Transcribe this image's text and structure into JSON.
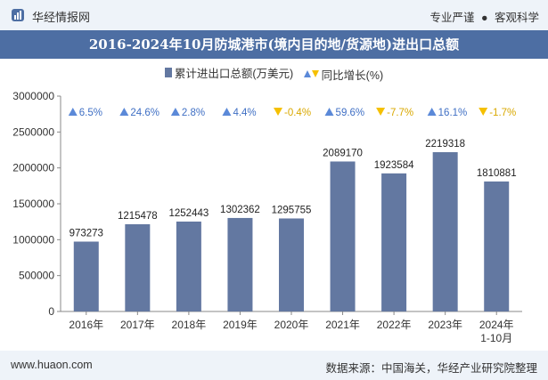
{
  "header": {
    "brand": "华经情报网",
    "slogan_left": "专业严谨",
    "separator": "●",
    "slogan_right": "客观科学"
  },
  "footer": {
    "website": "www.huaon.com",
    "source": "数据来源：中国海关，华经产业研究院整理"
  },
  "colors": {
    "bar": "#6378a1",
    "up": "#5b89d8",
    "down": "#f5c000",
    "title_band": "#4d6ea3",
    "band": "#eef3f9"
  },
  "chart_data": {
    "type": "bar",
    "title": "2016-2024年10月防城港市(境内目的地/货源地)进出口总额",
    "legend": {
      "bar_label": "累计进出口总额(万美元)",
      "growth_label": "同比增长(%)"
    },
    "categories": [
      [
        "2016年"
      ],
      [
        "2017年"
      ],
      [
        "2018年"
      ],
      [
        "2019年"
      ],
      [
        "2020年"
      ],
      [
        "2021年"
      ],
      [
        "2022年"
      ],
      [
        "2023年"
      ],
      [
        "2024年",
        "1-10月"
      ]
    ],
    "series": [
      {
        "name": "累计进出口总额(万美元)",
        "values": [
          973273,
          1215478,
          1252443,
          1302362,
          1295755,
          2089170,
          1923584,
          2219318,
          1810881
        ],
        "labels": [
          "973273",
          "1215478",
          "1252443",
          "1302362",
          "1295755",
          "2089170",
          "1923584",
          "2219318",
          "1810881"
        ]
      },
      {
        "name": "同比增长(%)",
        "values": [
          6.5,
          24.6,
          2.8,
          4.4,
          -0.4,
          59.6,
          -7.7,
          16.1,
          -1.7
        ],
        "labels": [
          "6.5%",
          "24.6%",
          "2.8%",
          "4.4%",
          "-0.4%",
          "59.6%",
          "-7.7%",
          "16.1%",
          "-1.7%"
        ]
      }
    ],
    "ylim": [
      0,
      3000000
    ],
    "yticks": [
      "0",
      "500000",
      "1000000",
      "1500000",
      "2000000",
      "2500000",
      "3000000"
    ],
    "xlabel": "",
    "ylabel": "",
    "grid": false,
    "legend_position": "top"
  }
}
